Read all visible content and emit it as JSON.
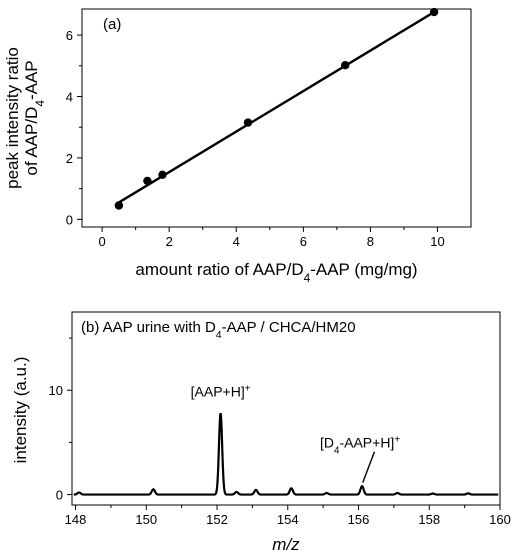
{
  "chart_data": [
    {
      "type": "scatter",
      "panel_label": "(a)",
      "xlabel_parts": [
        "amount ratio of AAP/D",
        "4",
        "-AAP (mg/mg)"
      ],
      "ylabel_line1": "peak intensity ratio",
      "ylabel_line2_parts": [
        "of AAP/D",
        "4",
        "-AAP"
      ],
      "xlim": [
        -0.6,
        11.0
      ],
      "ylim": [
        -0.25,
        6.85
      ],
      "xticks": [
        0,
        2,
        4,
        6,
        8,
        10
      ],
      "yticks": [
        0,
        2,
        4,
        6
      ],
      "grid": false,
      "points": [
        {
          "x": 0.5,
          "y": 0.45
        },
        {
          "x": 1.35,
          "y": 1.25
        },
        {
          "x": 1.8,
          "y": 1.45
        },
        {
          "x": 4.35,
          "y": 3.15
        },
        {
          "x": 7.25,
          "y": 5.02
        },
        {
          "x": 9.9,
          "y": 6.75
        }
      ],
      "fit_line": {
        "x": [
          0.5,
          9.9
        ],
        "y": [
          0.55,
          6.75
        ]
      }
    },
    {
      "type": "line",
      "panel_label_parts": [
        "(b) AAP urine with D",
        "4",
        "-AAP / CHCA/HM20"
      ],
      "xlabel": "m/z",
      "ylabel": "intensity (a.u.)",
      "xlim": [
        147.9,
        160.0
      ],
      "ylim": [
        -1.0,
        17.5
      ],
      "xticks": [
        148,
        150,
        152,
        154,
        156,
        158,
        160
      ],
      "yticks": [
        0,
        10
      ],
      "grid": false,
      "peaks": [
        {
          "x": 148.1,
          "h": 0.2
        },
        {
          "x": 150.2,
          "h": 0.5
        },
        {
          "x": 152.1,
          "h": 7.8
        },
        {
          "x": 152.55,
          "h": 0.25
        },
        {
          "x": 153.1,
          "h": 0.45
        },
        {
          "x": 154.1,
          "h": 0.6
        },
        {
          "x": 155.1,
          "h": 0.15
        },
        {
          "x": 156.1,
          "h": 0.8
        },
        {
          "x": 157.1,
          "h": 0.15
        },
        {
          "x": 158.1,
          "h": 0.1
        },
        {
          "x": 159.1,
          "h": 0.12
        }
      ],
      "annotations": [
        {
          "parts": [
            "[AAP+H]",
            "+"
          ],
          "x": 152.1,
          "y": 9.4
        },
        {
          "parts": [
            "[D",
            "4",
            "-AAP+H]",
            "+"
          ],
          "x": 156.1,
          "y": 5.0
        }
      ]
    }
  ]
}
